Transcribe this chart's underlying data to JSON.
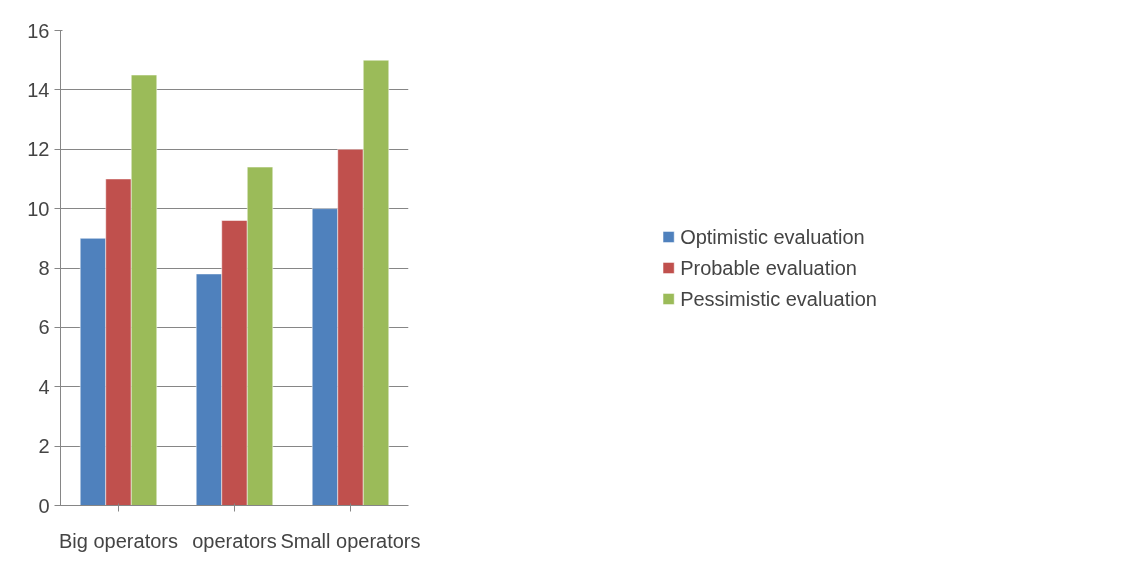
{
  "chart_data": {
    "type": "bar",
    "categories": [
      "Big operators",
      "operators",
      "Small operators"
    ],
    "series": [
      {
        "name": "Optimistic evaluation",
        "color": "#4f81bd",
        "values": [
          9,
          7.8,
          10
        ]
      },
      {
        "name": "Probable evaluation",
        "color": "#c0504d",
        "values": [
          11,
          9.6,
          12
        ]
      },
      {
        "name": "Pessimistic evaluation",
        "color": "#9bbb59",
        "values": [
          14.5,
          11.4,
          15
        ]
      }
    ],
    "ylim": [
      0,
      16
    ],
    "yticks": [
      0,
      2,
      4,
      6,
      8,
      10,
      12,
      14,
      16
    ],
    "grid": "y",
    "legend": "right"
  }
}
